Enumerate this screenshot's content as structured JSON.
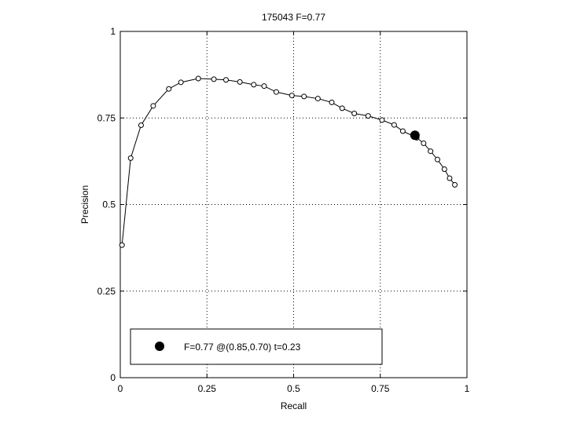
{
  "chart_data": {
    "type": "line",
    "title": "175043 F=0.77",
    "xlabel": "Recall",
    "ylabel": "Precision",
    "xlim": [
      0,
      1
    ],
    "ylim": [
      0,
      1
    ],
    "xticks": [
      0,
      0.25,
      0.5,
      0.75,
      1
    ],
    "yticks": [
      0,
      0.25,
      0.5,
      0.75,
      1
    ],
    "xtick_labels": [
      "0",
      "0.25",
      "0.5",
      "0.75",
      "1"
    ],
    "ytick_labels": [
      "0",
      "0.25",
      "0.5",
      "0.75",
      "1"
    ],
    "grid": true,
    "legend_position": "bottom-left",
    "series": [
      {
        "marker": "open-circle",
        "color": "#000000",
        "points": [
          [
            0.005,
            0.383
          ],
          [
            0.03,
            0.634
          ],
          [
            0.06,
            0.729
          ],
          [
            0.095,
            0.785
          ],
          [
            0.14,
            0.834
          ],
          [
            0.175,
            0.853
          ],
          [
            0.225,
            0.864
          ],
          [
            0.27,
            0.862
          ],
          [
            0.305,
            0.86
          ],
          [
            0.345,
            0.854
          ],
          [
            0.385,
            0.846
          ],
          [
            0.415,
            0.842
          ],
          [
            0.45,
            0.825
          ],
          [
            0.495,
            0.815
          ],
          [
            0.53,
            0.812
          ],
          [
            0.57,
            0.806
          ],
          [
            0.61,
            0.795
          ],
          [
            0.64,
            0.778
          ],
          [
            0.675,
            0.763
          ],
          [
            0.715,
            0.756
          ],
          [
            0.755,
            0.744
          ],
          [
            0.79,
            0.73
          ],
          [
            0.815,
            0.712
          ],
          [
            0.855,
            0.693
          ],
          [
            0.875,
            0.677
          ],
          [
            0.895,
            0.654
          ],
          [
            0.915,
            0.63
          ],
          [
            0.935,
            0.602
          ],
          [
            0.95,
            0.576
          ],
          [
            0.965,
            0.557
          ]
        ]
      }
    ],
    "highlight": {
      "x": 0.85,
      "y": 0.7,
      "marker": "filled-circle",
      "color": "#000000",
      "label": "F=0.77 @(0.85,0.70) t=0.23"
    }
  }
}
